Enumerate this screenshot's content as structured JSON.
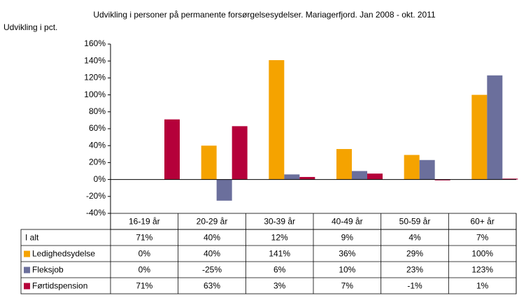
{
  "chart_data": {
    "type": "bar",
    "title": "Udvikling i personer på permanente forsørgelsesydelser. Mariagerfjord. Jan 2008 - okt. 2011",
    "y_label": "Udvikling i pct.",
    "categories": [
      "16-19 år",
      "20-29 år",
      "30-39 år",
      "40-49 år",
      "50-59 år",
      "60+ år"
    ],
    "total": {
      "name": "I alt",
      "labels": [
        "71%",
        "40%",
        "12%",
        "9%",
        "4%",
        "7%"
      ]
    },
    "series": [
      {
        "name": "Ledighedsydelse",
        "color": "#f5a300",
        "values": [
          0,
          40,
          141,
          36,
          29,
          100
        ],
        "value_labels": [
          "0%",
          "40%",
          "141%",
          "36%",
          "29%",
          "100%"
        ]
      },
      {
        "name": "Fleksjob",
        "color": "#6b6f9c",
        "values": [
          0,
          -25,
          6,
          10,
          23,
          123
        ],
        "value_labels": [
          "0%",
          "-25%",
          "6%",
          "10%",
          "23%",
          "123%"
        ]
      },
      {
        "name": "Førtidspension",
        "color": "#b5003a",
        "values": [
          71,
          63,
          3,
          7,
          -1,
          1
        ],
        "value_labels": [
          "71%",
          "63%",
          "3%",
          "7%",
          "-1%",
          "1%"
        ]
      }
    ],
    "ylim": [
      -40,
      160
    ],
    "yticks": [
      {
        "value": -40,
        "label": "-40%"
      },
      {
        "value": -20,
        "label": "-20%"
      },
      {
        "value": 0,
        "label": "0%"
      },
      {
        "value": 20,
        "label": "20%"
      },
      {
        "value": 40,
        "label": "40%"
      },
      {
        "value": 60,
        "label": "60%"
      },
      {
        "value": 80,
        "label": "80%"
      },
      {
        "value": 100,
        "label": "100%"
      },
      {
        "value": 120,
        "label": "120%"
      },
      {
        "value": 140,
        "label": "140%"
      },
      {
        "value": 160,
        "label": "160%"
      }
    ]
  }
}
